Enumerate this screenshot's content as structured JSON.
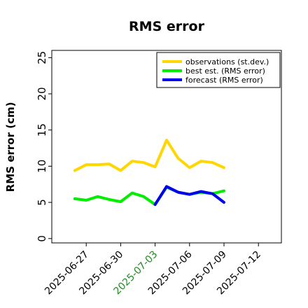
{
  "chart_data": {
    "type": "line",
    "title": "RMS error",
    "xlabel": "",
    "ylabel": "RMS error (cm)",
    "ylim": [
      -0.6,
      26
    ],
    "yticks": [
      0,
      5,
      10,
      15,
      20,
      25
    ],
    "xlim": [
      "2025-06-24",
      "2025-07-14"
    ],
    "xticks": [
      {
        "label": "2025-06-27",
        "highlight": false
      },
      {
        "label": "2025-06-30",
        "highlight": false
      },
      {
        "label": "2025-07-03",
        "highlight": true
      },
      {
        "label": "2025-07-06",
        "highlight": false
      },
      {
        "label": "2025-07-09",
        "highlight": false
      },
      {
        "label": "2025-07-12",
        "highlight": false
      }
    ],
    "legend_position": "top-right",
    "grid": false,
    "series": [
      {
        "name": "observations (st.dev.)",
        "color": "#ffd700",
        "x": [
          "2025-06-26",
          "2025-06-27",
          "2025-06-28",
          "2025-06-29",
          "2025-06-30",
          "2025-07-01",
          "2025-07-02",
          "2025-07-03",
          "2025-07-04",
          "2025-07-05",
          "2025-07-06",
          "2025-07-07",
          "2025-07-08",
          "2025-07-09"
        ],
        "values": [
          9.4,
          10.2,
          10.2,
          10.3,
          9.4,
          10.7,
          10.5,
          9.9,
          13.6,
          11.1,
          9.8,
          10.7,
          10.5,
          9.8
        ]
      },
      {
        "name": "best est. (RMS error)",
        "color": "#00ee00",
        "x": [
          "2025-06-26",
          "2025-06-27",
          "2025-06-28",
          "2025-06-29",
          "2025-06-30",
          "2025-07-01",
          "2025-07-02",
          "2025-07-03",
          "2025-07-04",
          "2025-07-05",
          "2025-07-06",
          "2025-07-07",
          "2025-07-08",
          "2025-07-09"
        ],
        "values": [
          5.5,
          5.3,
          5.8,
          5.4,
          5.1,
          6.3,
          5.8,
          4.7,
          7.1,
          6.4,
          6.1,
          6.4,
          6.2,
          6.6
        ]
      },
      {
        "name": "forecast (RMS error)",
        "color": "#0000ee",
        "x": [
          "2025-07-03",
          "2025-07-04",
          "2025-07-05",
          "2025-07-06",
          "2025-07-07",
          "2025-07-08",
          "2025-07-09"
        ],
        "values": [
          4.7,
          7.2,
          6.4,
          6.1,
          6.5,
          6.2,
          5.0
        ]
      }
    ]
  }
}
